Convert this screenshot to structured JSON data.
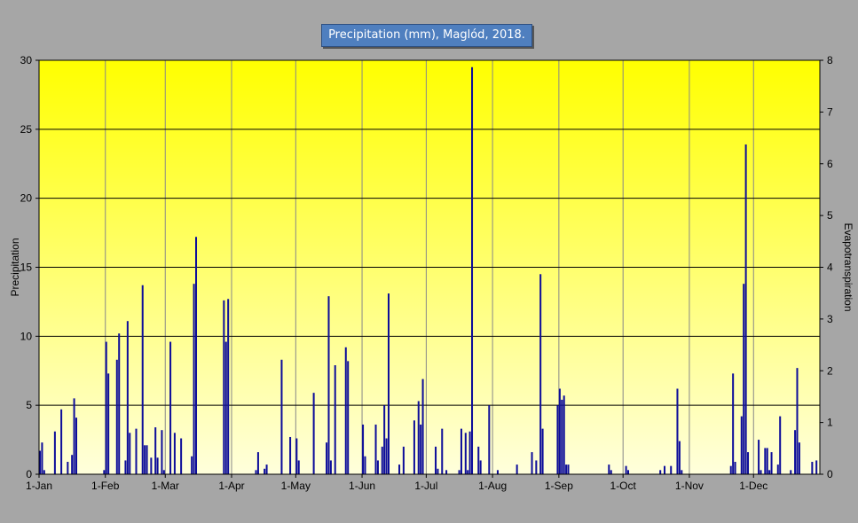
{
  "chart_data": {
    "type": "bar",
    "title": "Precipitation (mm), Maglód, 2018.",
    "ylabel": "Precipitation",
    "y2label": "Evapotranspiration",
    "xlim": [
      "2018-01-01",
      "2018-12-31"
    ],
    "ylim": [
      0,
      30
    ],
    "y2lim": [
      0,
      8
    ],
    "yticks": [
      "0",
      "5",
      "10",
      "15",
      "20",
      "25",
      "30"
    ],
    "y2ticks": [
      "0",
      "1",
      "2",
      "3",
      "4",
      "5",
      "6",
      "7",
      "8"
    ],
    "xticks": [
      {
        "date": "2018-01-01",
        "label": "1-Jan"
      },
      {
        "date": "2018-02-01",
        "label": "1-Feb"
      },
      {
        "date": "2018-03-01",
        "label": "1-Mar"
      },
      {
        "date": "2018-04-01",
        "label": "1-Apr"
      },
      {
        "date": "2018-05-01",
        "label": "1-May"
      },
      {
        "date": "2018-06-01",
        "label": "1-Jun"
      },
      {
        "date": "2018-07-01",
        "label": "1-Jul"
      },
      {
        "date": "2018-08-01",
        "label": "1-Aug"
      },
      {
        "date": "2018-09-01",
        "label": "1-Sep"
      },
      {
        "date": "2018-10-01",
        "label": "1-Oct"
      },
      {
        "date": "2018-11-01",
        "label": "1-Nov"
      },
      {
        "date": "2018-12-01",
        "label": "1-Dec"
      }
    ],
    "grid": true,
    "bar_color": "#0d0d9a",
    "plot_gradient": [
      "#ffff00",
      "#ffffdc"
    ],
    "series": [
      {
        "values": [
          [
            "2018-01-01",
            1.7
          ],
          [
            "2018-01-02",
            2.3
          ],
          [
            "2018-01-03",
            0.3
          ],
          [
            "2018-01-08",
            3.1
          ],
          [
            "2018-01-11",
            4.7
          ],
          [
            "2018-01-14",
            0.9
          ],
          [
            "2018-01-16",
            1.4
          ],
          [
            "2018-01-17",
            5.5
          ],
          [
            "2018-01-18",
            4.1
          ],
          [
            "2018-01-31",
            0.3
          ],
          [
            "2018-02-01",
            9.6
          ],
          [
            "2018-02-02",
            7.3
          ],
          [
            "2018-02-06",
            8.3
          ],
          [
            "2018-02-07",
            10.2
          ],
          [
            "2018-02-10",
            1.0
          ],
          [
            "2018-02-11",
            11.1
          ],
          [
            "2018-02-12",
            3.0
          ],
          [
            "2018-02-15",
            3.3
          ],
          [
            "2018-02-18",
            13.7
          ],
          [
            "2018-02-19",
            2.1
          ],
          [
            "2018-02-20",
            2.1
          ],
          [
            "2018-02-22",
            1.2
          ],
          [
            "2018-02-24",
            3.4
          ],
          [
            "2018-02-25",
            1.2
          ],
          [
            "2018-02-27",
            3.2
          ],
          [
            "2018-02-28",
            0.3
          ],
          [
            "2018-03-03",
            9.6
          ],
          [
            "2018-03-05",
            3.0
          ],
          [
            "2018-03-08",
            2.6
          ],
          [
            "2018-03-13",
            1.3
          ],
          [
            "2018-03-14",
            13.8
          ],
          [
            "2018-03-15",
            17.2
          ],
          [
            "2018-03-28",
            12.6
          ],
          [
            "2018-03-29",
            9.6
          ],
          [
            "2018-03-30",
            12.7
          ],
          [
            "2018-04-12",
            0.3
          ],
          [
            "2018-04-13",
            1.6
          ],
          [
            "2018-04-16",
            0.4
          ],
          [
            "2018-04-17",
            0.7
          ],
          [
            "2018-04-24",
            8.3
          ],
          [
            "2018-04-28",
            2.7
          ],
          [
            "2018-05-01",
            2.6
          ],
          [
            "2018-05-02",
            1.0
          ],
          [
            "2018-05-09",
            5.9
          ],
          [
            "2018-05-15",
            2.3
          ],
          [
            "2018-05-16",
            12.9
          ],
          [
            "2018-05-17",
            1.0
          ],
          [
            "2018-05-19",
            7.9
          ],
          [
            "2018-05-24",
            9.2
          ],
          [
            "2018-05-25",
            8.2
          ],
          [
            "2018-06-01",
            3.6
          ],
          [
            "2018-06-02",
            1.3
          ],
          [
            "2018-06-07",
            3.6
          ],
          [
            "2018-06-08",
            1.0
          ],
          [
            "2018-06-10",
            2.0
          ],
          [
            "2018-06-11",
            5.0
          ],
          [
            "2018-06-12",
            2.6
          ],
          [
            "2018-06-13",
            13.1
          ],
          [
            "2018-06-18",
            0.7
          ],
          [
            "2018-06-20",
            2.0
          ],
          [
            "2018-06-25",
            3.9
          ],
          [
            "2018-06-27",
            5.3
          ],
          [
            "2018-06-28",
            3.6
          ],
          [
            "2018-06-29",
            6.9
          ],
          [
            "2018-07-05",
            2.0
          ],
          [
            "2018-07-06",
            0.4
          ],
          [
            "2018-07-08",
            3.3
          ],
          [
            "2018-07-10",
            0.3
          ],
          [
            "2018-07-16",
            0.3
          ],
          [
            "2018-07-17",
            3.3
          ],
          [
            "2018-07-19",
            3.0
          ],
          [
            "2018-07-20",
            0.3
          ],
          [
            "2018-07-21",
            3.1
          ],
          [
            "2018-07-22",
            29.5
          ],
          [
            "2018-07-25",
            2.0
          ],
          [
            "2018-07-26",
            1.0
          ],
          [
            "2018-07-30",
            5.0
          ],
          [
            "2018-08-03",
            0.3
          ],
          [
            "2018-08-12",
            0.7
          ],
          [
            "2018-08-19",
            1.6
          ],
          [
            "2018-08-21",
            1.0
          ],
          [
            "2018-08-23",
            14.5
          ],
          [
            "2018-08-24",
            3.3
          ],
          [
            "2018-08-31",
            5.0
          ],
          [
            "2018-09-01",
            6.2
          ],
          [
            "2018-09-02",
            5.4
          ],
          [
            "2018-09-03",
            5.7
          ],
          [
            "2018-09-04",
            0.7
          ],
          [
            "2018-09-05",
            0.7
          ],
          [
            "2018-09-24",
            0.7
          ],
          [
            "2018-09-25",
            0.3
          ],
          [
            "2018-10-02",
            0.6
          ],
          [
            "2018-10-03",
            0.3
          ],
          [
            "2018-10-18",
            0.3
          ],
          [
            "2018-10-20",
            0.6
          ],
          [
            "2018-10-23",
            0.6
          ],
          [
            "2018-10-26",
            6.2
          ],
          [
            "2018-10-27",
            2.4
          ],
          [
            "2018-10-28",
            0.3
          ],
          [
            "2018-11-20",
            0.6
          ],
          [
            "2018-11-21",
            7.3
          ],
          [
            "2018-11-22",
            0.9
          ],
          [
            "2018-11-25",
            4.2
          ],
          [
            "2018-11-26",
            13.8
          ],
          [
            "2018-11-27",
            23.9
          ],
          [
            "2018-11-28",
            1.6
          ],
          [
            "2018-12-03",
            2.5
          ],
          [
            "2018-12-04",
            0.3
          ],
          [
            "2018-12-06",
            1.9
          ],
          [
            "2018-12-07",
            1.9
          ],
          [
            "2018-12-08",
            0.3
          ],
          [
            "2018-12-09",
            1.6
          ],
          [
            "2018-12-12",
            0.7
          ],
          [
            "2018-12-13",
            4.2
          ],
          [
            "2018-12-18",
            0.3
          ],
          [
            "2018-12-20",
            3.2
          ],
          [
            "2018-12-21",
            7.7
          ],
          [
            "2018-12-22",
            2.3
          ],
          [
            "2018-12-28",
            0.9
          ],
          [
            "2018-12-30",
            1.0
          ]
        ]
      }
    ]
  }
}
